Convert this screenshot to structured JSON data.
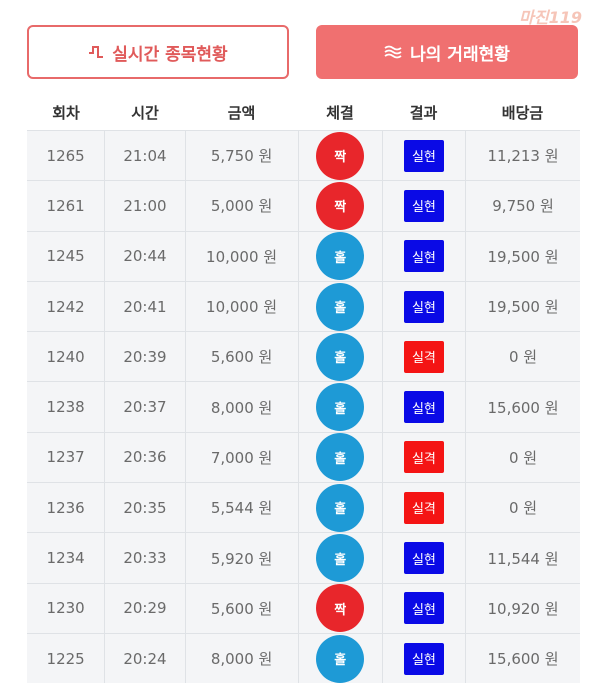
{
  "logo": "마진119",
  "tabs": [
    "실시간 종목현황",
    "나의 거래현황"
  ],
  "table": {
    "header": [
      "회차",
      "시간",
      "금액",
      "체결",
      "결과",
      "배당금"
    ],
    "rows": [
      [
        "1265",
        "21:04",
        "5,750 원",
        "짝",
        "실현",
        "11,213 원"
      ],
      [
        "1261",
        "21:00",
        "5,000 원",
        "짝",
        "실현",
        "9,750 원"
      ],
      [
        "1245",
        "20:44",
        "10,000 원",
        "홀",
        "실현",
        "19,500 원"
      ],
      [
        "1242",
        "20:41",
        "10,000 원",
        "홀",
        "실현",
        "19,500 원"
      ],
      [
        "1240",
        "20:39",
        "5,600 원",
        "홀",
        "실격",
        "0 원"
      ],
      [
        "1238",
        "20:37",
        "8,000 원",
        "홀",
        "실현",
        "15,600 원"
      ],
      [
        "1237",
        "20:36",
        "7,000 원",
        "홀",
        "실격",
        "0 원"
      ],
      [
        "1236",
        "20:35",
        "5,544 원",
        "홀",
        "실격",
        "0 원"
      ],
      [
        "1234",
        "20:33",
        "5,920 원",
        "홀",
        "실현",
        "11,544 원"
      ],
      [
        "1230",
        "20:29",
        "5,600 원",
        "짝",
        "실현",
        "10,920 원"
      ],
      [
        "1225",
        "20:24",
        "8,000 원",
        "홀",
        "실현",
        "15,600 원"
      ]
    ]
  }
}
